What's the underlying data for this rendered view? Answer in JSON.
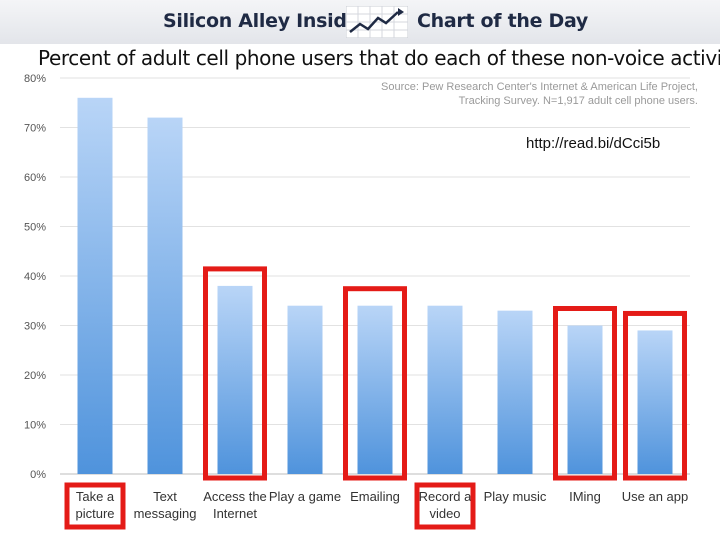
{
  "header": {
    "brand": "Silicon Alley Insider",
    "section": "Chart of the Day",
    "logo_icon": "trend-line-icon"
  },
  "link_text": "http://read.bi/dCci5b",
  "chart_data": {
    "type": "bar",
    "title": "Percent of adult cell phone users that do each of these non-voice activities",
    "source": "Source: Pew Research Center's Internet & American Life Project, Tracking Survey. N=1,917 adult cell phone users.",
    "categories": [
      [
        "Take a",
        "picture"
      ],
      [
        "Text",
        "messaging"
      ],
      [
        "Access the",
        "Internet"
      ],
      [
        "Play a game"
      ],
      [
        "Emailing"
      ],
      [
        "Record a",
        "video"
      ],
      [
        "Play music"
      ],
      [
        "IMing"
      ],
      [
        "Use an app"
      ]
    ],
    "values": [
      76,
      72,
      38,
      34,
      34,
      34,
      33,
      30,
      29
    ],
    "highlighted": [
      false,
      false,
      true,
      false,
      true,
      false,
      false,
      true,
      true
    ],
    "highlighted_labels": [
      true,
      false,
      false,
      false,
      false,
      true,
      false,
      false,
      false
    ],
    "yticks": [
      "0%",
      "10%",
      "20%",
      "30%",
      "40%",
      "50%",
      "60%",
      "70%",
      "80%"
    ],
    "ylim": [
      0,
      80
    ],
    "grid": true,
    "bar_color_top": "#b9d5f7",
    "bar_color_bottom": "#4f93dc",
    "highlight_color": "#e41b17"
  }
}
